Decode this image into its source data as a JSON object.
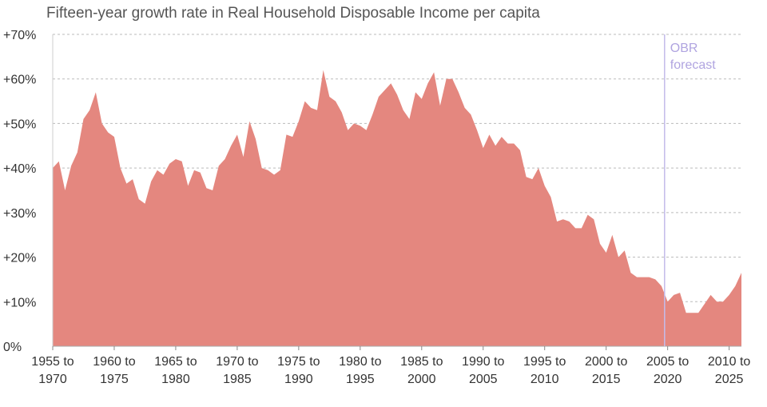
{
  "chart_data": {
    "type": "area",
    "title": "Fifteen-year growth rate in Real Household Disposable Income per capita",
    "x": [
      1955,
      1955.5,
      1956,
      1956.5,
      1957,
      1957.5,
      1958,
      1958.5,
      1959,
      1959.5,
      1960,
      1960.5,
      1961,
      1961.5,
      1962,
      1962.5,
      1963,
      1963.5,
      1964,
      1964.5,
      1965,
      1965.5,
      1966,
      1966.5,
      1967,
      1967.5,
      1968,
      1968.5,
      1969,
      1969.5,
      1970,
      1970.5,
      1971,
      1971.5,
      1972,
      1972.5,
      1973,
      1973.5,
      1974,
      1974.5,
      1975,
      1975.5,
      1976,
      1976.5,
      1977,
      1977.5,
      1978,
      1978.5,
      1979,
      1979.5,
      1980,
      1980.5,
      1981,
      1981.5,
      1982,
      1982.5,
      1983,
      1983.5,
      1984,
      1984.5,
      1985,
      1985.5,
      1986,
      1986.5,
      1987,
      1987.5,
      1988,
      1988.5,
      1989,
      1989.5,
      1990,
      1990.5,
      1991,
      1991.5,
      1992,
      1992.5,
      1993,
      1993.5,
      1994,
      1994.5,
      1995,
      1995.5,
      1996,
      1996.5,
      1997,
      1997.5,
      1998,
      1998.5,
      1999,
      1999.5,
      2000,
      2000.5,
      2001,
      2001.5,
      2002,
      2002.5,
      2003,
      2003.5,
      2004,
      2004.5,
      2005,
      2005.5,
      2006,
      2006.5,
      2007,
      2007.5,
      2008,
      2008.5,
      2009,
      2009.5,
      2010,
      2010.5,
      2011
    ],
    "values": [
      40,
      41.5,
      35,
      40.5,
      43.5,
      51,
      53,
      57,
      50,
      48,
      47,
      40,
      36.5,
      37.5,
      33,
      32,
      37,
      39.5,
      38.5,
      41,
      42,
      41.5,
      36,
      39.5,
      39,
      35.5,
      35,
      40.5,
      42,
      45,
      47.5,
      42.5,
      50.5,
      46.5,
      40,
      39.5,
      38.5,
      39.5,
      47.5,
      47,
      50.5,
      55,
      53.5,
      53,
      62,
      56,
      55,
      52.5,
      48.5,
      50,
      49.5,
      48.5,
      52,
      56,
      57.5,
      59,
      56.5,
      53,
      51,
      57,
      55.5,
      59,
      61.5,
      54,
      60,
      60,
      57,
      53.5,
      52,
      48.5,
      44.5,
      47.5,
      45,
      47,
      45.5,
      45.5,
      44,
      38,
      37.5,
      40,
      36,
      33.5,
      28,
      28.5,
      28,
      26.5,
      26.5,
      29.5,
      28.5,
      23,
      21,
      25,
      20,
      21.5,
      16.5,
      15.5,
      15.5,
      15.5,
      15,
      13.5,
      10,
      11.5,
      12,
      7.5,
      7.5,
      7.5,
      9.5,
      11.5,
      10,
      10,
      11.5,
      13.5,
      16.5
    ],
    "color": "#e4877f",
    "xlim": [
      1955,
      2011
    ],
    "xticks": [
      {
        "value": 1955,
        "label": [
          "1955 to",
          "1970"
        ]
      },
      {
        "value": 1960,
        "label": [
          "1960 to",
          "1975"
        ]
      },
      {
        "value": 1965,
        "label": [
          "1965 to",
          "1980"
        ]
      },
      {
        "value": 1970,
        "label": [
          "1970 to",
          "1985"
        ]
      },
      {
        "value": 1975,
        "label": [
          "1975 to",
          "1990"
        ]
      },
      {
        "value": 1980,
        "label": [
          "1980 to",
          "1995"
        ]
      },
      {
        "value": 1985,
        "label": [
          "1985 to",
          "2000"
        ]
      },
      {
        "value": 1990,
        "label": [
          "1990 to",
          "2005"
        ]
      },
      {
        "value": 1995,
        "label": [
          "1995 to",
          "2010"
        ]
      },
      {
        "value": 2000,
        "label": [
          "2000 to",
          "2015"
        ]
      },
      {
        "value": 2005,
        "label": [
          "2005 to",
          "2020"
        ]
      },
      {
        "value": 2010,
        "label": [
          "2010 to",
          "2025"
        ]
      }
    ],
    "ylim": [
      0,
      70
    ],
    "yticks": [
      {
        "value": 0,
        "label": "0%"
      },
      {
        "value": 10,
        "label": "+10%"
      },
      {
        "value": 20,
        "label": "+20%"
      },
      {
        "value": 30,
        "label": "+30%"
      },
      {
        "value": 40,
        "label": "+40%"
      },
      {
        "value": 50,
        "label": "+50%"
      },
      {
        "value": 60,
        "label": "+60%"
      },
      {
        "value": 70,
        "label": "+70%"
      }
    ],
    "grid": true,
    "annotation": {
      "x": 2004.75,
      "lines": [
        "OBR",
        "forecast"
      ],
      "color": "#c4bcea"
    }
  }
}
